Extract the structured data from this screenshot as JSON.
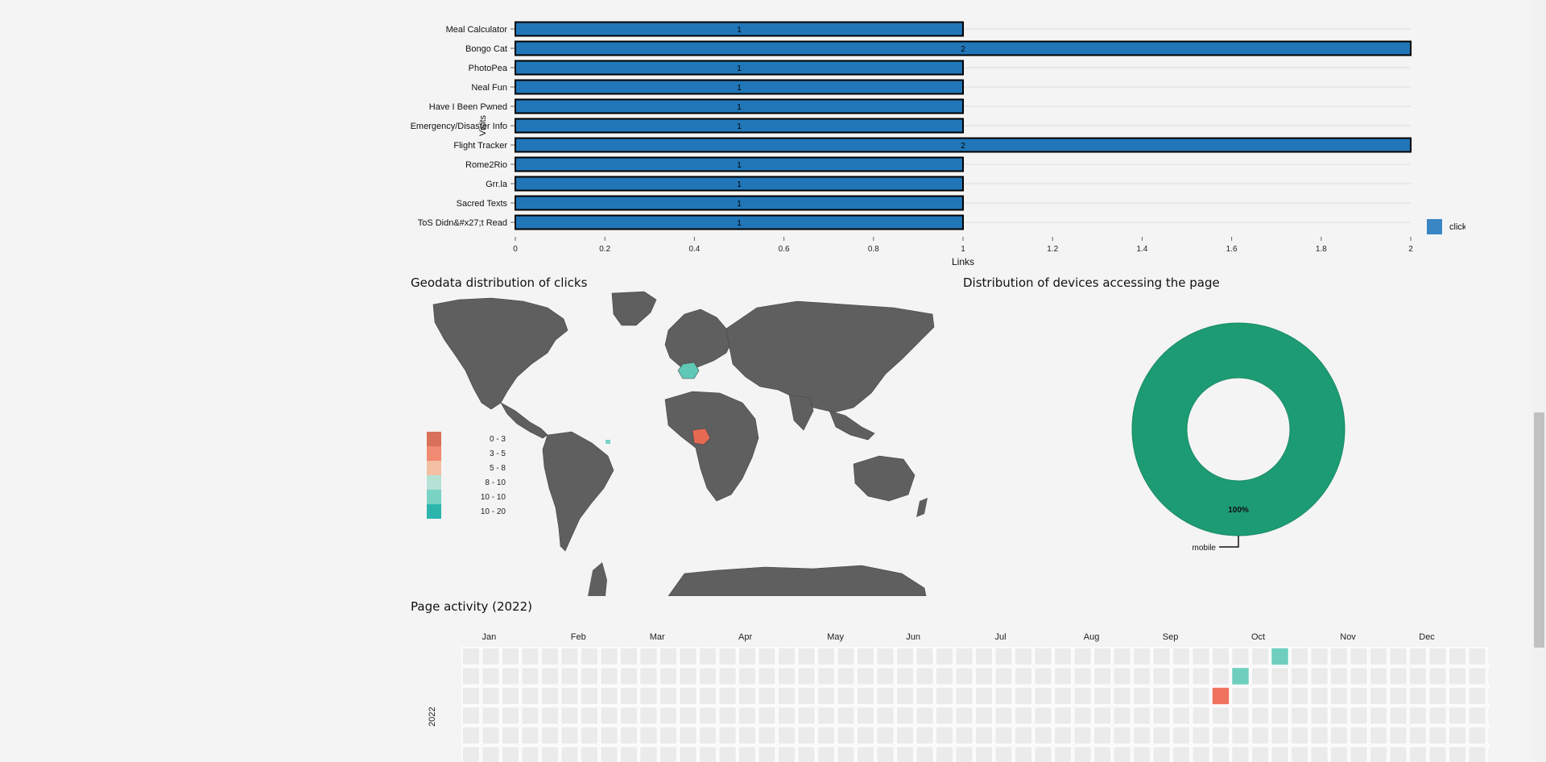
{
  "bar_chart": {
    "chart_data": {
      "type": "bar",
      "orientation": "horizontal",
      "categories": [
        "Meal Calculator",
        "Bongo Cat",
        "PhotoPea",
        "Neal Fun",
        "Have I Been Pwned",
        "Emergency/Disaster Info",
        "Flight Tracker",
        "Rome2Rio",
        "Grr.la",
        "Sacred Texts",
        "ToS Didn&#x27;t Read"
      ],
      "series": [
        {
          "name": "clicks",
          "values": [
            1,
            2,
            1,
            1,
            1,
            1,
            2,
            1,
            1,
            1,
            1
          ]
        }
      ],
      "xlabel": "Links",
      "ylabel": "Visits",
      "xlim": [
        0,
        2
      ],
      "xticks": [
        "0",
        "0.2",
        "0.4",
        "0.6",
        "0.8",
        "1",
        "1.2",
        "1.4",
        "1.6",
        "1.8",
        "2"
      ],
      "grid": true,
      "legend": "right",
      "bar_color": "#2176b8"
    }
  },
  "geo": {
    "title": "Geodata distribution of clicks",
    "legend": [
      {
        "label": "0 - 3",
        "color": "#d9705a"
      },
      {
        "label": "3 - 5",
        "color": "#f08a72"
      },
      {
        "label": "5 - 8",
        "color": "#f3bfa3"
      },
      {
        "label": "8 - 10",
        "color": "#b6e2d6"
      },
      {
        "label": "10 - 10",
        "color": "#78d3c4"
      },
      {
        "label": "10 - 20",
        "color": "#2bb5ad"
      }
    ],
    "land_color": "#5f5f5f"
  },
  "devices": {
    "title": "Distribution of devices accessing the page",
    "chart_data": {
      "type": "pie",
      "labels": [
        "mobile"
      ],
      "values": [
        100
      ],
      "data_labels": [
        "100%"
      ],
      "color": "#1d9c74"
    }
  },
  "activity": {
    "title": "Page activity (2022)",
    "year": "2022",
    "months": [
      "Jan",
      "Feb",
      "Mar",
      "Apr",
      "May",
      "Jun",
      "Jul",
      "Aug",
      "Sep",
      "Oct",
      "Nov",
      "Dec"
    ],
    "highlights": [
      {
        "week": 41,
        "day": 0,
        "color": "#6fcfbf"
      },
      {
        "week": 39,
        "day": 1,
        "color": "#6fcfbf"
      },
      {
        "week": 38,
        "day": 2,
        "color": "#f0735d"
      }
    ]
  }
}
